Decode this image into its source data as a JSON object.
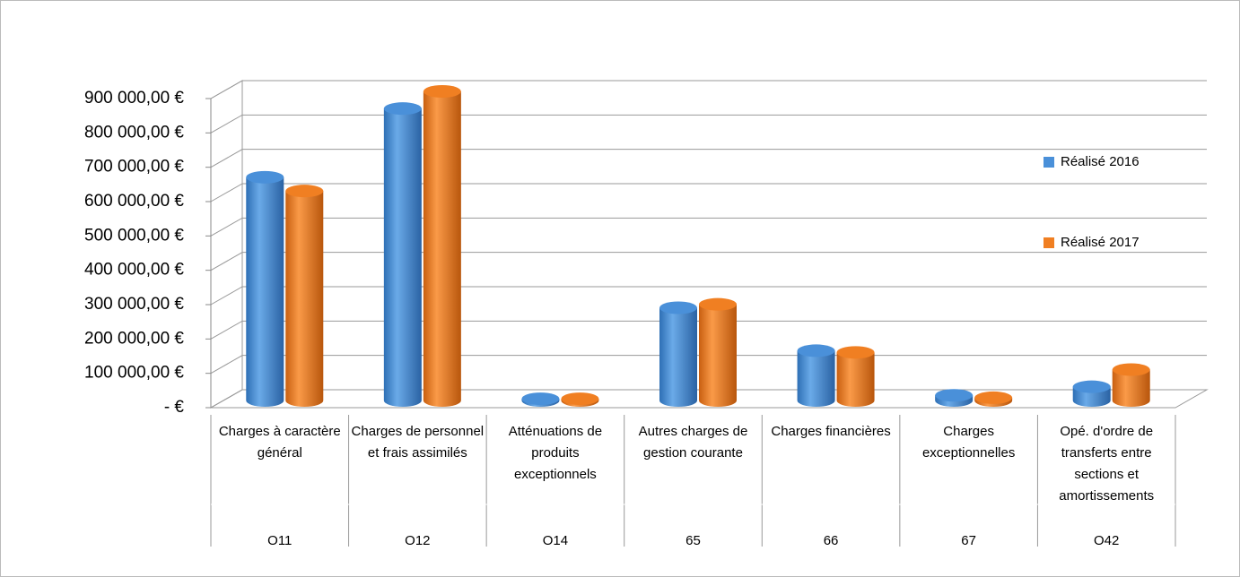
{
  "chart_data": {
    "type": "bar3d",
    "categories": [
      "Charges à caractère général",
      "Charges de personnel et frais assimilés",
      "Atténuations de produits exceptionnels",
      "Autres charges de gestion courante",
      "Charges financières",
      "Charges exceptionnelles",
      "Opé. d'ordre de transferts entre sections et amortissements"
    ],
    "category_codes": [
      "O11",
      "O12",
      "O14",
      "65",
      "66",
      "67",
      "O42"
    ],
    "series": [
      {
        "name": "Réalisé 2016",
        "color": "#4a90d9",
        "values": [
          650000,
          850000,
          5000,
          270000,
          145000,
          15000,
          40000
        ]
      },
      {
        "name": "Réalisé 2017",
        "color": "#f07f22",
        "values": [
          610000,
          900000,
          5000,
          280000,
          140000,
          8000,
          90000
        ]
      }
    ],
    "ylim": [
      0,
      900000
    ],
    "yticks": [
      {
        "value": 0,
        "label": "-  €"
      },
      {
        "value": 100000,
        "label": "100 000,00 €"
      },
      {
        "value": 200000,
        "label": "200 000,00 €"
      },
      {
        "value": 300000,
        "label": "300 000,00 €"
      },
      {
        "value": 400000,
        "label": "400 000,00 €"
      },
      {
        "value": 500000,
        "label": "500 000,00 €"
      },
      {
        "value": 600000,
        "label": "600 000,00 €"
      },
      {
        "value": 700000,
        "label": "700 000,00 €"
      },
      {
        "value": 800000,
        "label": "800 000,00 €"
      },
      {
        "value": 900000,
        "label": "900 000,00 €"
      }
    ],
    "grid": true,
    "legend": "right"
  }
}
